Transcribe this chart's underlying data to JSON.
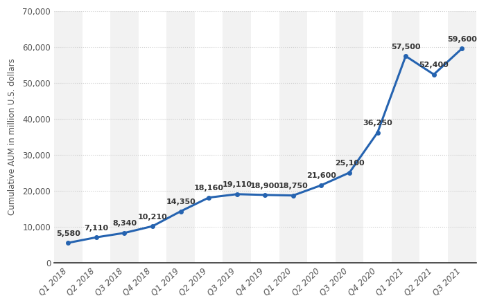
{
  "categories": [
    "Q1 2018",
    "Q2 2018",
    "Q3 2018",
    "Q4 2018",
    "Q1 2019",
    "Q2 2019",
    "Q3 2019",
    "Q4 2019",
    "Q1 2020",
    "Q2 2020",
    "Q3 2020",
    "Q4 2020",
    "Q1 2021",
    "Q2 2021",
    "Q3 2021"
  ],
  "values": [
    5580,
    7110,
    8340,
    10210,
    14350,
    18160,
    19110,
    18900,
    18750,
    21600,
    25100,
    36250,
    57500,
    52400,
    59600
  ],
  "line_color": "#2563b0",
  "ylabel": "Cumulative AUM in million U.S. dollars",
  "ylim": [
    0,
    70000
  ],
  "yticks": [
    0,
    10000,
    20000,
    30000,
    40000,
    50000,
    60000,
    70000
  ],
  "ytick_labels": [
    "0",
    "10,000",
    "20,000",
    "30,000",
    "40,000",
    "50,000",
    "60,000",
    "70,000"
  ],
  "background_color": "#ffffff",
  "plot_bg_color": "#ffffff",
  "band_color": "#f2f2f2",
  "grid_color": "#cccccc",
  "label_fontsize": 8.5,
  "annotation_fontsize": 8.0,
  "tick_fontsize": 8.5
}
